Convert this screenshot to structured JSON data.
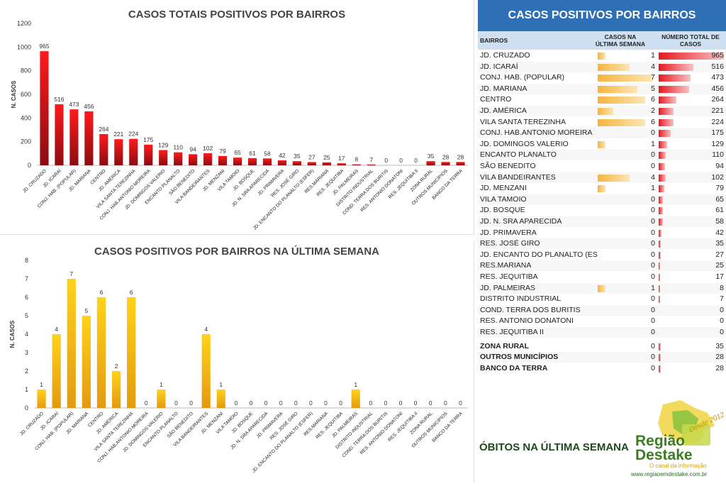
{
  "chart_data": [
    {
      "type": "bar",
      "title": "CASOS TOTAIS POSITIVOS POR BAIRROS",
      "ylabel": "N. CASOS",
      "xlabel": "",
      "ylim": [
        0,
        1200
      ],
      "yticks": [
        0,
        200,
        400,
        600,
        800,
        1000,
        1200
      ],
      "categories": [
        "JD. CRUZADO",
        "JD. ICARAÍ",
        "CONJ. HAB. (POPULAR)",
        "JD. MARIANA",
        "CENTRO",
        "JD. AMÉRICA",
        "VILA SANTA TEREZINHA",
        "CONJ. HAB.ANTONIO MOREIRA",
        "JD. DOMINGOS VALERIO",
        "ENCANTO PLANALTO",
        "SÃO BENEDITO",
        "VILA BANDEIRANTES",
        "JD. MENZANI",
        "VILA TAMOIO",
        "JD. BOSQUE",
        "JD. N. SRA APARECIDA",
        "JD. PRIMAVERA",
        "RES. JOSÉ GIRO",
        "JD. ENCANTO DO PLANALTO (ESFER)",
        "RES.MARIANA",
        "RES. JEQUITIBA",
        "JD. PALMEIRAS",
        "DISTRITO INDUSTRIAL",
        "COND. TERRA DOS BURITIS",
        "RES. ANTONIO DONATONI",
        "RES. JEQUITIBA II",
        "ZONA RURAL",
        "OUTROS MUNICÍPIOS",
        "BANCO DA TERRA"
      ],
      "values": [
        965,
        516,
        473,
        456,
        264,
        221,
        224,
        175,
        129,
        110,
        94,
        102,
        79,
        65,
        61,
        58,
        42,
        35,
        27,
        25,
        17,
        8,
        7,
        0,
        0,
        0,
        35,
        28,
        28
      ],
      "bar_color": "#e8121c"
    },
    {
      "type": "bar",
      "title": "CASOS POSITIVOS POR BAIRROS NA ÚLTIMA SEMANA",
      "ylabel": "N. CASOS",
      "xlabel": "",
      "ylim": [
        0,
        8
      ],
      "yticks": [
        0,
        1,
        2,
        3,
        4,
        5,
        6,
        7,
        8
      ],
      "categories": [
        "JD. CRUZADO",
        "JD. ICARAÍ",
        "CONJ. HAB. (POPULAR)",
        "JD. MARIANA",
        "CENTRO",
        "JD. AMÉRICA",
        "VILA SANTA TEREZINHA",
        "CONJ. HAB.ANTONIO MOREIRA",
        "JD. DOMINGOS VALERIO",
        "ENCANTO PLANALTO",
        "SÃO BENEDITO",
        "VILA BANDEIRANTES",
        "JD. MENZANI",
        "VILA TAMOIO",
        "JD. BOSQUE",
        "JD. N. SRA APARECIDA",
        "JD. PRIMAVERA",
        "RES. JOSÉ GIRO",
        "JD. ENCANTO DO PLANALTO (ESFER)",
        "RES.MARIANA",
        "RES. JEQUITIBA",
        "JD. PALMEIRAS",
        "DISTRITO INDUSTRIAL",
        "COND. TERRA DOS BURITIS",
        "RES. ANTONIO DONATONI",
        "RES. JEQUITIBA II",
        "ZONA RURAL",
        "OUTROS MUNICÍPIOS",
        "BANCO DA TERRA"
      ],
      "values": [
        1,
        4,
        7,
        5,
        6,
        2,
        6,
        0,
        1,
        0,
        0,
        4,
        1,
        0,
        0,
        0,
        0,
        0,
        0,
        0,
        0,
        1,
        0,
        0,
        0,
        0,
        0,
        0,
        0
      ],
      "bar_color": "#f2b51f"
    },
    {
      "type": "table",
      "title": "CASOS POSITIVOS POR BAIRROS",
      "columns": [
        "BAIRROS",
        "CASOS NA ÚLTIMA SEMANA",
        "NÚMERO TOTAL DE CASOS"
      ],
      "rows": [
        {
          "name": "JD. CRUZADO",
          "week": 1,
          "total": 965,
          "bold": false
        },
        {
          "name": "JD. ICARAÍ",
          "week": 4,
          "total": 516,
          "bold": false
        },
        {
          "name": "CONJ. HAB. (POPULAR)",
          "week": 7,
          "total": 473,
          "bold": false
        },
        {
          "name": "JD. MARIANA",
          "week": 5,
          "total": 456,
          "bold": false
        },
        {
          "name": "CENTRO",
          "week": 6,
          "total": 264,
          "bold": false
        },
        {
          "name": "JD. AMÉRICA",
          "week": 2,
          "total": 221,
          "bold": false
        },
        {
          "name": "VILA SANTA TEREZINHA",
          "week": 6,
          "total": 224,
          "bold": false
        },
        {
          "name": "CONJ. HAB.ANTONIO MOREIRA",
          "week": 0,
          "total": 175,
          "bold": false
        },
        {
          "name": "JD. DOMINGOS VALERIO",
          "week": 1,
          "total": 129,
          "bold": false
        },
        {
          "name": "ENCANTO PLANALTO",
          "week": 0,
          "total": 110,
          "bold": false
        },
        {
          "name": "SÃO BENEDITO",
          "week": 0,
          "total": 94,
          "bold": false
        },
        {
          "name": "VILA BANDEIRANTES",
          "week": 4,
          "total": 102,
          "bold": false
        },
        {
          "name": "JD. MENZANI",
          "week": 1,
          "total": 79,
          "bold": false
        },
        {
          "name": "VILA TAMOIO",
          "week": 0,
          "total": 65,
          "bold": false
        },
        {
          "name": "JD. BOSQUE",
          "week": 0,
          "total": 61,
          "bold": false
        },
        {
          "name": "JD. N. SRA APARECIDA",
          "week": 0,
          "total": 58,
          "bold": false
        },
        {
          "name": "JD. PRIMAVERA",
          "week": 0,
          "total": 42,
          "bold": false
        },
        {
          "name": "RES. JOSÉ GIRO",
          "week": 0,
          "total": 35,
          "bold": false
        },
        {
          "name": "JD. ENCANTO DO PLANALTO (ESFER",
          "week": 0,
          "total": 27,
          "bold": false
        },
        {
          "name": "RES.MARIANA",
          "week": 0,
          "total": 25,
          "bold": false
        },
        {
          "name": "RES. JEQUITIBA",
          "week": 0,
          "total": 17,
          "bold": false
        },
        {
          "name": "JD. PALMEIRAS",
          "week": 1,
          "total": 8,
          "bold": false
        },
        {
          "name": "DISTRITO INDUSTRIAL",
          "week": 0,
          "total": 7,
          "bold": false
        },
        {
          "name": "COND. TERRA DOS BURITIS",
          "week": 0,
          "total": 0,
          "bold": false
        },
        {
          "name": "RES. ANTONIO DONATONI",
          "week": 0,
          "total": 0,
          "bold": false
        },
        {
          "name": "RES. JEQUITIBA II",
          "week": 0,
          "total": 0,
          "bold": false
        },
        {
          "name": "ZONA RURAL",
          "week": 0,
          "total": 35,
          "bold": true
        },
        {
          "name": "OUTROS MUNICÍPIOS",
          "week": 0,
          "total": 28,
          "bold": true
        },
        {
          "name": "BANCO DA TERRA",
          "week": 0,
          "total": 28,
          "bold": true
        }
      ],
      "week_max": 7,
      "total_max": 965
    }
  ],
  "footer": {
    "obitos_text": "ÓBITOS NA ÚLTIMA SEMANA"
  },
  "logo": {
    "name_line1": "Região",
    "name_line2": "Destake",
    "tagline": "O canal da informação",
    "url": "www.regiaoemdestake.com.br",
    "year_text": "Desde 2012"
  },
  "colors": {
    "header_blue": "#2e6fb6",
    "subheader_blue": "#cfe0f2",
    "red": "#e8121c",
    "yellow": "#f2b51f"
  }
}
